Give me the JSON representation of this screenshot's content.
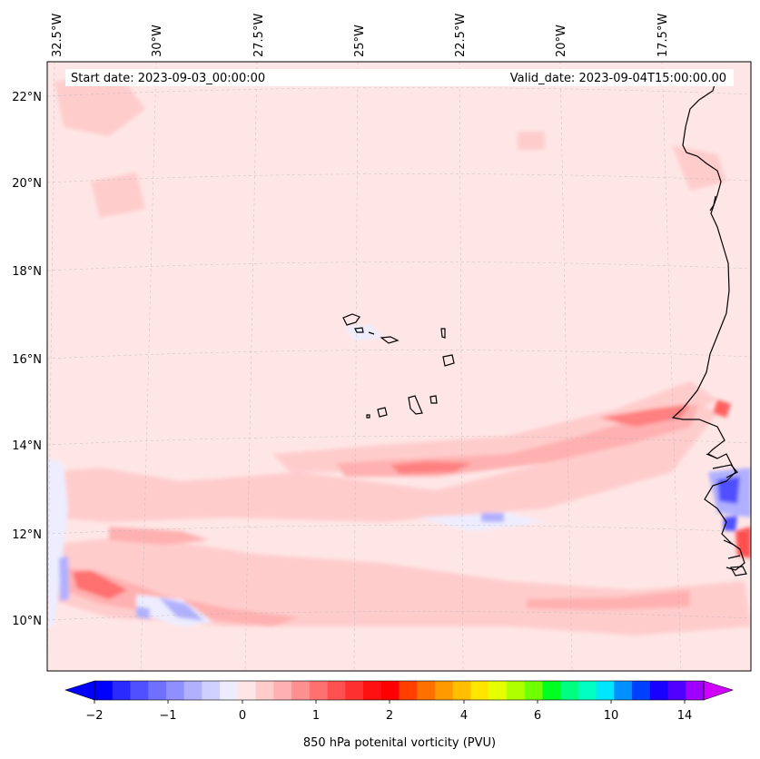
{
  "header": {
    "start_date": "Start date: 2023-09-03_00:00:00",
    "valid_date": "Valid_date: 2023-09-04T15:00:00.00"
  },
  "axes": {
    "lon_labels": [
      "32.5°W",
      "30°W",
      "27.5°W",
      "25°W",
      "22.5°W",
      "20°W",
      "17.5°W"
    ],
    "lat_labels": [
      "22°N",
      "20°N",
      "18°N",
      "16°N",
      "14°N",
      "12°N",
      "10°N"
    ],
    "gridlines": true
  },
  "colorbar": {
    "label": "850 hPa potenital vorticity (PVU)",
    "tick_labels": [
      "−2",
      "−1",
      "0",
      "1",
      "2",
      "4",
      "6",
      "10",
      "14"
    ],
    "colors": [
      "#0000ff",
      "#2a2aff",
      "#5050ff",
      "#7070ff",
      "#8f8fff",
      "#b0b0ff",
      "#d0d0ff",
      "#ededff",
      "#ffe6e6",
      "#ffcccc",
      "#ffb0b0",
      "#ff9090",
      "#ff7070",
      "#ff5050",
      "#ff3030",
      "#ff1010",
      "#ff0000",
      "#ff4000",
      "#ff7000",
      "#ff9a00",
      "#ffbf00",
      "#ffe600",
      "#e6ff00",
      "#b0ff00",
      "#70ff00",
      "#00ff20",
      "#00ff80",
      "#00ffc0",
      "#00e6ff",
      "#0090ff",
      "#0040ff",
      "#1a00ff",
      "#5000ff",
      "#a000ff"
    ],
    "extend": "both",
    "max_color": "#d000ff",
    "min_color": "#0000ff"
  },
  "map": {
    "background_color": "#ffe6e6",
    "projection": "conic"
  }
}
